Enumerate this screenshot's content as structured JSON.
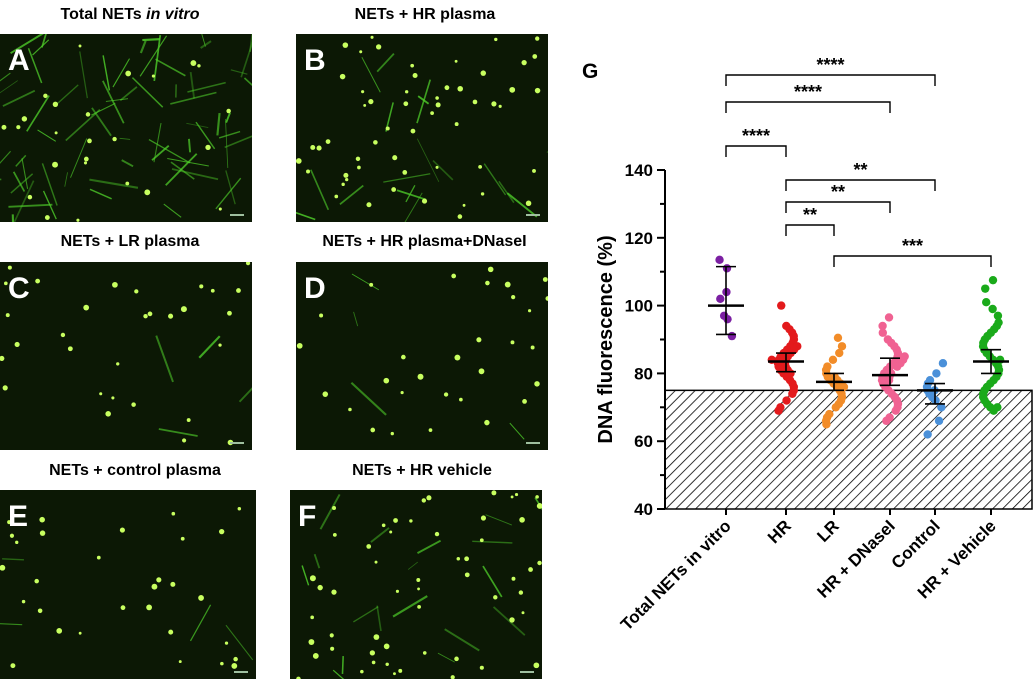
{
  "panels": [
    {
      "letter": "A",
      "title_a": "Total NETs ",
      "title_b": "in vitro",
      "density": "dense",
      "seed": 11
    },
    {
      "letter": "B",
      "title_a": "NETs + HR plasma",
      "title_b": "",
      "density": "medium",
      "seed": 23
    },
    {
      "letter": "C",
      "title_a": "NETs + LR plasma",
      "title_b": "",
      "density": "sparse",
      "seed": 37
    },
    {
      "letter": "D",
      "title_a": "NETs + HR plasma+DNaseI",
      "title_b": "",
      "density": "sparse",
      "seed": 51
    },
    {
      "letter": "E",
      "title_a": "NETs +  control plasma",
      "title_b": "",
      "density": "sparse",
      "seed": 67
    },
    {
      "letter": "F",
      "title_a": "NETs + HR vehicle",
      "title_b": "",
      "density": "medium",
      "seed": 79
    }
  ],
  "chart_data": {
    "type": "scatter",
    "panel_letter": "G",
    "ylabel": "DNA fluorescence (%)",
    "ylim": [
      40,
      140
    ],
    "yticks": [
      40,
      60,
      80,
      100,
      120,
      140
    ],
    "baseline": 75,
    "categories": [
      "Total NETs in vitro",
      "HR",
      "LR",
      "HR + DNaseI",
      "Control",
      "HR + Vehicle"
    ],
    "series": [
      {
        "color": "#7b1fa2",
        "mean": 100,
        "err": [
          91.5,
          111.5
        ],
        "points": [
          113.5,
          111,
          104,
          102,
          97,
          96,
          91
        ]
      },
      {
        "color": "#e31a1c",
        "mean": 83.5,
        "err": [
          80.5,
          86
        ],
        "points": [
          100,
          94,
          93,
          92,
          91,
          90,
          89,
          88,
          88,
          87,
          87,
          86,
          86,
          85,
          85,
          84,
          84,
          84,
          83,
          83,
          82,
          82,
          81,
          81,
          80,
          80,
          79,
          78,
          77,
          76,
          75,
          74,
          72,
          70,
          69
        ]
      },
      {
        "color": "#f28c28",
        "mean": 77.5,
        "err": [
          75,
          80
        ],
        "points": [
          90.5,
          88,
          86,
          84,
          82,
          81,
          80,
          79,
          79,
          78,
          78,
          77,
          77,
          76,
          76,
          75,
          74,
          73,
          72,
          71,
          70,
          68,
          67,
          66,
          65
        ]
      },
      {
        "color": "#f06292",
        "mean": 79.5,
        "err": [
          76.5,
          84.5
        ],
        "points": [
          96.5,
          94,
          92,
          90,
          89,
          88,
          87,
          86,
          85,
          85,
          84,
          84,
          83,
          83,
          82,
          82,
          81,
          80,
          80,
          79,
          79,
          78,
          78,
          77,
          76,
          75,
          74,
          73,
          72,
          71,
          70,
          69,
          67,
          66
        ]
      },
      {
        "color": "#4a90d9",
        "mean": 75,
        "err": [
          71,
          77
        ],
        "points": [
          83,
          80,
          78,
          77,
          76,
          75,
          75,
          74,
          73,
          72,
          70,
          66,
          62
        ]
      },
      {
        "color": "#1aaa1a",
        "mean": 83.5,
        "err": [
          80,
          87
        ],
        "points": [
          107.5,
          105,
          101,
          99,
          97,
          95,
          94,
          93,
          92,
          91,
          90,
          89,
          88,
          87,
          86,
          85,
          84,
          84,
          83,
          82,
          81,
          80,
          79,
          78,
          77,
          76,
          75,
          74,
          73,
          72,
          71,
          70,
          70,
          69
        ]
      }
    ],
    "significance": [
      {
        "from": 0,
        "to": 4,
        "label": "****"
      },
      {
        "from": 0,
        "to": 3,
        "label": "****"
      },
      {
        "from": 0,
        "to": 1,
        "label": "****"
      },
      {
        "from": 1,
        "to": 4,
        "label": "**"
      },
      {
        "from": 1,
        "to": 3,
        "label": "**"
      },
      {
        "from": 1,
        "to": 2,
        "label": "**"
      },
      {
        "from": 2,
        "to": 5,
        "label": "***"
      }
    ]
  }
}
